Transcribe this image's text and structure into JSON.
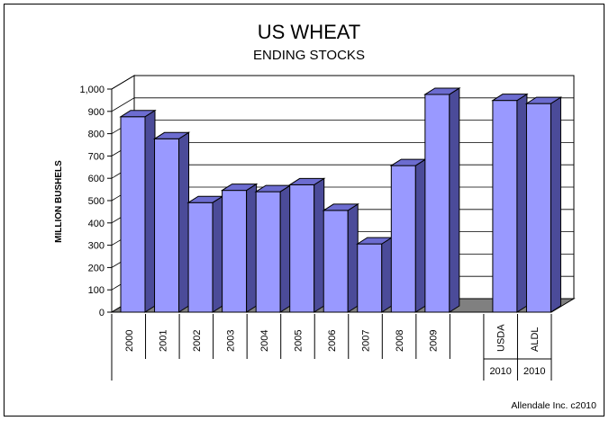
{
  "chart_data": {
    "type": "bar",
    "title": "US WHEAT",
    "subtitle": "ENDING STOCKS",
    "ylabel": "MILLION BUSHELS",
    "ylim": [
      0,
      1000
    ],
    "yticks": [
      "0",
      "100",
      "200",
      "300",
      "400",
      "500",
      "600",
      "700",
      "800",
      "900",
      "1,000"
    ],
    "categories": [
      "2000",
      "2001",
      "2002",
      "2003",
      "2004",
      "2005",
      "2006",
      "2007",
      "2008",
      "2009",
      "",
      "USDA",
      "ALDL"
    ],
    "sublabels": [
      "",
      "",
      "",
      "",
      "",
      "",
      "",
      "",
      "",
      "",
      "",
      "2010",
      "2010"
    ],
    "values": [
      876,
      777,
      491,
      546,
      540,
      571,
      456,
      306,
      657,
      976,
      null,
      949,
      935
    ],
    "grid": true,
    "bar_color": "#9999ff",
    "bar_side_color": "#4b4b99",
    "bar_top_color": "#6c6cd0",
    "floor_color": "#808080",
    "credit": "Allendale Inc. c2010"
  }
}
